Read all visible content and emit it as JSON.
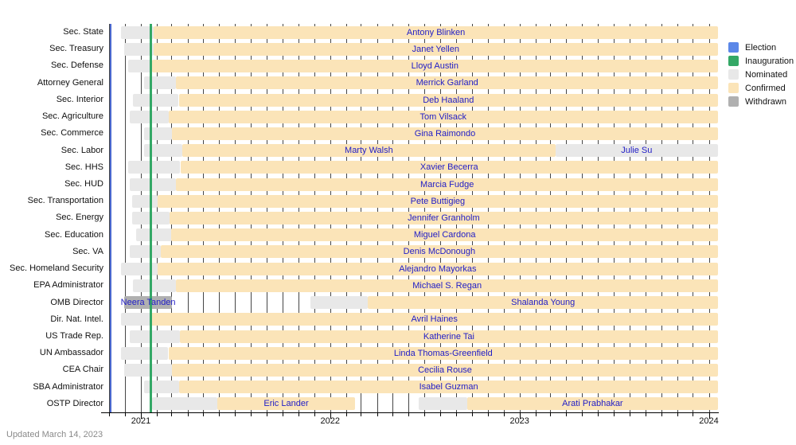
{
  "updated_note": "Updated March 14, 2023",
  "colors": {
    "election": "#5b87e8",
    "election_line": "#4a68cf",
    "inauguration": "#34a866",
    "inauguration_line": "#34a866",
    "nominated": "#e8e8e8",
    "confirmed": "#fbe4b8",
    "withdrawn": "#b0b0b0",
    "name_text": "#1f1cc6",
    "gridline": "#454545"
  },
  "legend": [
    {
      "label": "Election",
      "key": "election"
    },
    {
      "label": "Inauguration",
      "key": "inauguration"
    },
    {
      "label": "Nominated",
      "key": "nominated"
    },
    {
      "label": "Confirmed",
      "key": "confirmed"
    },
    {
      "label": "Withdrawn",
      "key": "withdrawn"
    }
  ],
  "chart_data": {
    "type": "gantt",
    "x_axis": {
      "domain_start": "2020-10-25",
      "domain_end": "2024-01-17",
      "year_ticks": [
        {
          "label": "2021",
          "date": "2021-01-01"
        },
        {
          "label": "2022",
          "date": "2022-01-01"
        },
        {
          "label": "2023",
          "date": "2023-01-01"
        },
        {
          "label": "2024",
          "date": "2024-01-01"
        }
      ],
      "minor_ticks": "monthly",
      "grid": "monthly-vertical"
    },
    "events": [
      {
        "label": "Election",
        "date": "2020-11-03",
        "color_key": "election_line",
        "width": 2
      },
      {
        "label": "Inauguration",
        "date": "2021-01-20",
        "color_key": "inauguration_line",
        "width": 3
      }
    ],
    "rows": [
      {
        "label": "Sec. State",
        "segments": [
          {
            "type": "nominated",
            "start": "2020-11-23",
            "end": "2021-01-26"
          },
          {
            "type": "confirmed",
            "start": "2021-01-26",
            "end": "edge",
            "name": "Antony Blinken"
          }
        ]
      },
      {
        "label": "Sec. Treasury",
        "segments": [
          {
            "type": "nominated",
            "start": "2020-11-30",
            "end": "2021-01-25"
          },
          {
            "type": "confirmed",
            "start": "2021-01-25",
            "end": "edge",
            "name": "Janet Yellen"
          }
        ]
      },
      {
        "label": "Sec. Defense",
        "segments": [
          {
            "type": "nominated",
            "start": "2020-12-08",
            "end": "2021-01-22"
          },
          {
            "type": "confirmed",
            "start": "2021-01-22",
            "end": "edge",
            "name": "Lloyd Austin"
          }
        ]
      },
      {
        "label": "Attorney General",
        "segments": [
          {
            "type": "nominated",
            "start": "2021-01-07",
            "end": "2021-03-10"
          },
          {
            "type": "confirmed",
            "start": "2021-03-10",
            "end": "edge",
            "name": "Merrick Garland"
          }
        ]
      },
      {
        "label": "Sec. Interior",
        "segments": [
          {
            "type": "nominated",
            "start": "2020-12-17",
            "end": "2021-03-15"
          },
          {
            "type": "confirmed",
            "start": "2021-03-15",
            "end": "edge",
            "name": "Deb Haaland"
          }
        ]
      },
      {
        "label": "Sec. Agriculture",
        "segments": [
          {
            "type": "nominated",
            "start": "2020-12-10",
            "end": "2021-02-23"
          },
          {
            "type": "confirmed",
            "start": "2021-02-23",
            "end": "edge",
            "name": "Tom Vilsack"
          }
        ]
      },
      {
        "label": "Sec. Commerce",
        "segments": [
          {
            "type": "nominated",
            "start": "2021-01-07",
            "end": "2021-03-02"
          },
          {
            "type": "confirmed",
            "start": "2021-03-02",
            "end": "edge",
            "name": "Gina Raimondo"
          }
        ]
      },
      {
        "label": "Sec. Labor",
        "segments": [
          {
            "type": "nominated",
            "start": "2021-01-07",
            "end": "2021-03-22"
          },
          {
            "type": "confirmed",
            "start": "2021-03-22",
            "end": "2023-03-11",
            "name": "Marty Walsh"
          },
          {
            "type": "nominated",
            "start": "2023-03-11",
            "end": "edge",
            "name": "Julie Su"
          }
        ]
      },
      {
        "label": "Sec. HHS",
        "segments": [
          {
            "type": "nominated",
            "start": "2020-12-07",
            "end": "2021-03-18"
          },
          {
            "type": "confirmed",
            "start": "2021-03-18",
            "end": "edge",
            "name": "Xavier Becerra"
          }
        ]
      },
      {
        "label": "Sec. HUD",
        "segments": [
          {
            "type": "nominated",
            "start": "2020-12-10",
            "end": "2021-03-10"
          },
          {
            "type": "confirmed",
            "start": "2021-03-10",
            "end": "edge",
            "name": "Marcia Fudge"
          }
        ]
      },
      {
        "label": "Sec. Transportation",
        "segments": [
          {
            "type": "nominated",
            "start": "2020-12-15",
            "end": "2021-02-02"
          },
          {
            "type": "confirmed",
            "start": "2021-02-02",
            "end": "edge",
            "name": "Pete Buttigieg"
          }
        ]
      },
      {
        "label": "Sec. Energy",
        "segments": [
          {
            "type": "nominated",
            "start": "2020-12-15",
            "end": "2021-02-25"
          },
          {
            "type": "confirmed",
            "start": "2021-02-25",
            "end": "edge",
            "name": "Jennifer Granholm"
          }
        ]
      },
      {
        "label": "Sec. Education",
        "segments": [
          {
            "type": "nominated",
            "start": "2020-12-22",
            "end": "2021-03-01"
          },
          {
            "type": "confirmed",
            "start": "2021-03-01",
            "end": "edge",
            "name": "Miguel Cardona"
          }
        ]
      },
      {
        "label": "Sec. VA",
        "segments": [
          {
            "type": "nominated",
            "start": "2020-12-10",
            "end": "2021-02-08"
          },
          {
            "type": "confirmed",
            "start": "2021-02-08",
            "end": "edge",
            "name": "Denis McDonough"
          }
        ]
      },
      {
        "label": "Sec. Homeland Security",
        "segments": [
          {
            "type": "nominated",
            "start": "2020-11-23",
            "end": "2021-02-02"
          },
          {
            "type": "confirmed",
            "start": "2021-02-02",
            "end": "edge",
            "name": "Alejandro Mayorkas"
          }
        ]
      },
      {
        "label": "EPA Administrator",
        "segments": [
          {
            "type": "nominated",
            "start": "2020-12-17",
            "end": "2021-03-10"
          },
          {
            "type": "confirmed",
            "start": "2021-03-10",
            "end": "edge",
            "name": "Michael S. Regan"
          }
        ]
      },
      {
        "label": "OMB Director",
        "segments": [
          {
            "type": "withdrawn",
            "start": "2020-11-30",
            "end": "2021-03-02",
            "name": "Neera Tanden"
          },
          {
            "type": "nominated",
            "start": "2021-11-24",
            "end": "2022-03-15"
          },
          {
            "type": "confirmed",
            "start": "2022-03-15",
            "end": "edge",
            "name": "Shalanda Young"
          }
        ]
      },
      {
        "label": "Dir. Nat. Intel.",
        "segments": [
          {
            "type": "nominated",
            "start": "2020-11-23",
            "end": "2021-01-20"
          },
          {
            "type": "confirmed",
            "start": "2021-01-20",
            "end": "edge",
            "name": "Avril Haines"
          }
        ]
      },
      {
        "label": "US Trade Rep.",
        "segments": [
          {
            "type": "nominated",
            "start": "2020-12-10",
            "end": "2021-03-17"
          },
          {
            "type": "confirmed",
            "start": "2021-03-17",
            "end": "edge",
            "name": "Katherine Tai"
          }
        ]
      },
      {
        "label": "UN Ambassador",
        "segments": [
          {
            "type": "nominated",
            "start": "2020-11-23",
            "end": "2021-02-23"
          },
          {
            "type": "confirmed",
            "start": "2021-02-23",
            "end": "edge",
            "name": "Linda Thomas-Greenfield"
          }
        ]
      },
      {
        "label": "CEA Chair",
        "segments": [
          {
            "type": "nominated",
            "start": "2020-11-30",
            "end": "2021-03-02"
          },
          {
            "type": "confirmed",
            "start": "2021-03-02",
            "end": "edge",
            "name": "Cecilia Rouse"
          }
        ]
      },
      {
        "label": "SBA Administrator",
        "segments": [
          {
            "type": "nominated",
            "start": "2021-01-07",
            "end": "2021-03-16"
          },
          {
            "type": "confirmed",
            "start": "2021-03-16",
            "end": "edge",
            "name": "Isabel Guzman"
          }
        ]
      },
      {
        "label": "OSTP Director",
        "segments": [
          {
            "type": "nominated",
            "start": "2021-01-22",
            "end": "2021-05-28"
          },
          {
            "type": "confirmed",
            "start": "2021-05-28",
            "end": "2022-02-18",
            "name": "Eric Lander"
          },
          {
            "type": "nominated",
            "start": "2022-06-21",
            "end": "2022-09-22"
          },
          {
            "type": "confirmed",
            "start": "2022-09-22",
            "end": "edge",
            "name": "Arati Prabhakar"
          }
        ]
      }
    ]
  }
}
